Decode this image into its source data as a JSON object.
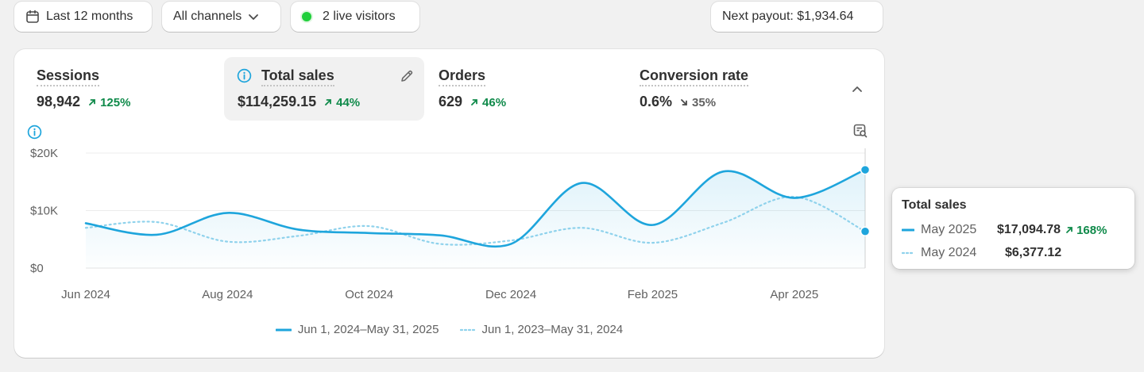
{
  "toolbar": {
    "date_range": "Last 12 months",
    "channels": "All channels",
    "live_visitors": "2 live visitors",
    "next_payout": "Next payout: $1,934.64"
  },
  "metrics": [
    {
      "label": "Sessions",
      "value": "98,942",
      "change": "125%",
      "direction": "up"
    },
    {
      "label": "Total sales",
      "value": "$114,259.15",
      "change": "44%",
      "direction": "up"
    },
    {
      "label": "Orders",
      "value": "629",
      "change": "46%",
      "direction": "up"
    },
    {
      "label": "Conversion rate",
      "value": "0.6%",
      "change": "35%",
      "direction": "down"
    }
  ],
  "colors": {
    "accent": "#1ea5dc",
    "positive": "#0f8a4a",
    "previous_line": "#8fd2ec",
    "live_dot": "#1fcf3a"
  },
  "icons": {
    "date": "calendar-icon",
    "channels_dropdown": "chevron-down-icon",
    "live": "status-dot-icon",
    "edit": "pencil-icon",
    "info": "info-icon",
    "collapse": "chevron-up-icon",
    "chart_search": "report-search-icon"
  },
  "chart_data": {
    "type": "line",
    "ylabel": "",
    "xlabel": "",
    "ylim": [
      0,
      20000
    ],
    "y_ticks": [
      "$0",
      "$10K",
      "$20K"
    ],
    "y_tick_values": [
      0,
      10000,
      20000
    ],
    "x_ticks": [
      "Jun 2024",
      "Aug 2024",
      "Oct 2024",
      "Dec 2024",
      "Feb 2025",
      "Apr 2025"
    ],
    "x_tick_indices": [
      0,
      2,
      4,
      6,
      8,
      10
    ],
    "categories": [
      "Jun 2024",
      "Jul 2024",
      "Aug 2024",
      "Sep 2024",
      "Oct 2024",
      "Nov 2024",
      "Dec 2024",
      "Jan 2025",
      "Feb 2025",
      "Mar 2025",
      "Apr 2025",
      "May 2025"
    ],
    "series": [
      {
        "name": "Jun 1, 2024–May 31, 2025",
        "style": "solid",
        "values": [
          7800,
          5800,
          9600,
          6700,
          6100,
          5700,
          4200,
          14800,
          7500,
          16800,
          12200,
          17094.78
        ]
      },
      {
        "name": "Jun 1, 2023–May 31, 2024",
        "style": "dotted",
        "values": [
          7000,
          8000,
          4600,
          5600,
          7300,
          4200,
          4800,
          7000,
          4400,
          7900,
          12400,
          6377.12
        ]
      }
    ],
    "grid": true
  },
  "legend": {
    "current": "Jun 1, 2024–May 31, 2025",
    "previous": "Jun 1, 2023–May 31, 2024"
  },
  "tooltip": {
    "title": "Total sales",
    "current_period": "May 2025",
    "current_value": "$17,094.78",
    "current_change": "168%",
    "previous_period": "May 2024",
    "previous_value": "$6,377.12"
  }
}
